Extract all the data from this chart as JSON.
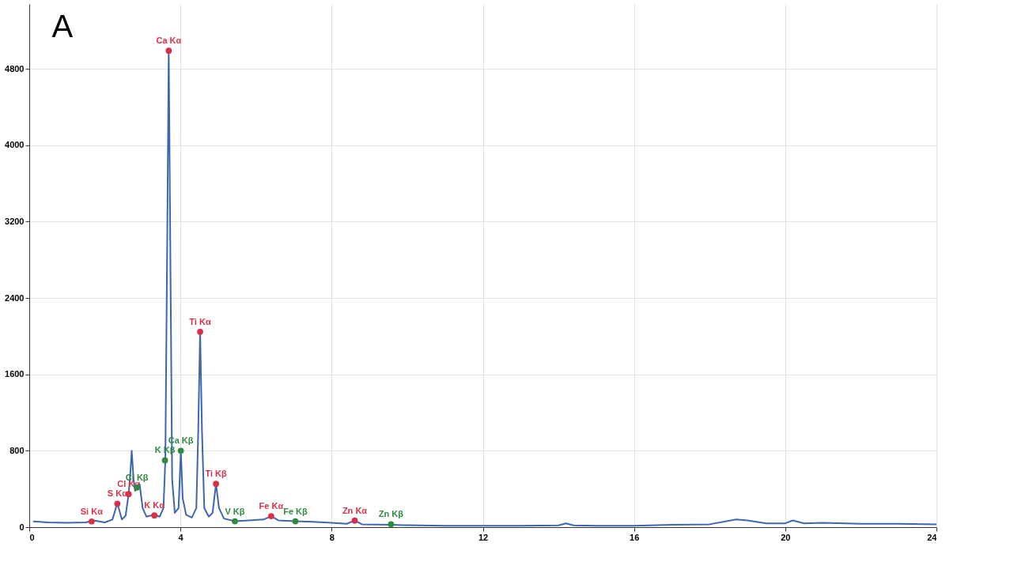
{
  "chart_data": {
    "type": "line",
    "title": "A",
    "xlim": [
      0,
      24
    ],
    "xticks": [
      0,
      4,
      8,
      12,
      16,
      20,
      24
    ],
    "ylim": [
      0,
      5480
    ],
    "yticks": [
      0,
      800,
      1600,
      2400,
      3200,
      4000,
      4800
    ],
    "grid": true,
    "series": [
      {
        "color": "#3e66b0",
        "marker": "none",
        "x": [
          0.1,
          0.5,
          1.0,
          1.5,
          1.7,
          2.0,
          2.2,
          2.33,
          2.45,
          2.55,
          2.63,
          2.68,
          2.71,
          2.76,
          2.8,
          2.85,
          2.92,
          3.0,
          3.1,
          3.31,
          3.45,
          3.55,
          3.6,
          3.65,
          3.69,
          3.73,
          3.78,
          3.85,
          3.95,
          4.01,
          4.06,
          4.15,
          4.3,
          4.42,
          4.47,
          4.52,
          4.57,
          4.63,
          4.75,
          4.85,
          4.94,
          5.02,
          5.15,
          5.44,
          5.8,
          6.2,
          6.4,
          6.6,
          7.04,
          7.5,
          8.0,
          8.4,
          8.61,
          8.8,
          9.57,
          10,
          11,
          12,
          13,
          14,
          14.2,
          14.4,
          15,
          16,
          17,
          18,
          18.7,
          19,
          19.5,
          20,
          20.2,
          20.5,
          21,
          22,
          23,
          24
        ],
        "values": [
          60,
          50,
          45,
          50,
          70,
          50,
          80,
          250,
          80,
          120,
          350,
          600,
          800,
          500,
          380,
          420,
          450,
          200,
          110,
          130,
          110,
          200,
          700,
          3000,
          4990,
          3000,
          500,
          150,
          200,
          800,
          300,
          130,
          100,
          200,
          1000,
          2046,
          1000,
          200,
          110,
          150,
          454,
          200,
          90,
          62,
          70,
          80,
          115,
          70,
          62,
          55,
          45,
          35,
          69,
          30,
          25,
          20,
          15,
          15,
          15,
          18,
          40,
          18,
          15,
          15,
          25,
          30,
          80,
          70,
          40,
          40,
          70,
          40,
          45,
          35,
          35,
          30
        ]
      },
      {
        "type": "scatter",
        "color": "#d9304a",
        "marker": "circle",
        "x": [
          1.65,
          2.33,
          2.63,
          3.31,
          3.69,
          4.52,
          4.94,
          6.4,
          8.61
        ],
        "values": [
          60,
          246,
          346,
          123,
          4990,
          2046,
          454,
          115,
          69
        ],
        "value_labels": [
          "Si Kα",
          "S Kα",
          "Cl Kα",
          "K Kα",
          "Ca Kα",
          "Ti Kα",
          "Ti Kβ",
          "Fe Kα",
          "Zn Kα"
        ]
      },
      {
        "type": "scatter",
        "color": "#2e8b3e",
        "marker": "circle",
        "x": [
          2.85,
          3.59,
          4.01,
          5.44,
          7.04,
          9.57
        ],
        "values": [
          415,
          700,
          800,
          62,
          62,
          31
        ],
        "value_labels": [
          "Cl Kβ",
          "K Kβ",
          "Ca Kβ",
          "V Kβ",
          "Fe Kβ",
          "Zn Kβ"
        ]
      }
    ]
  }
}
